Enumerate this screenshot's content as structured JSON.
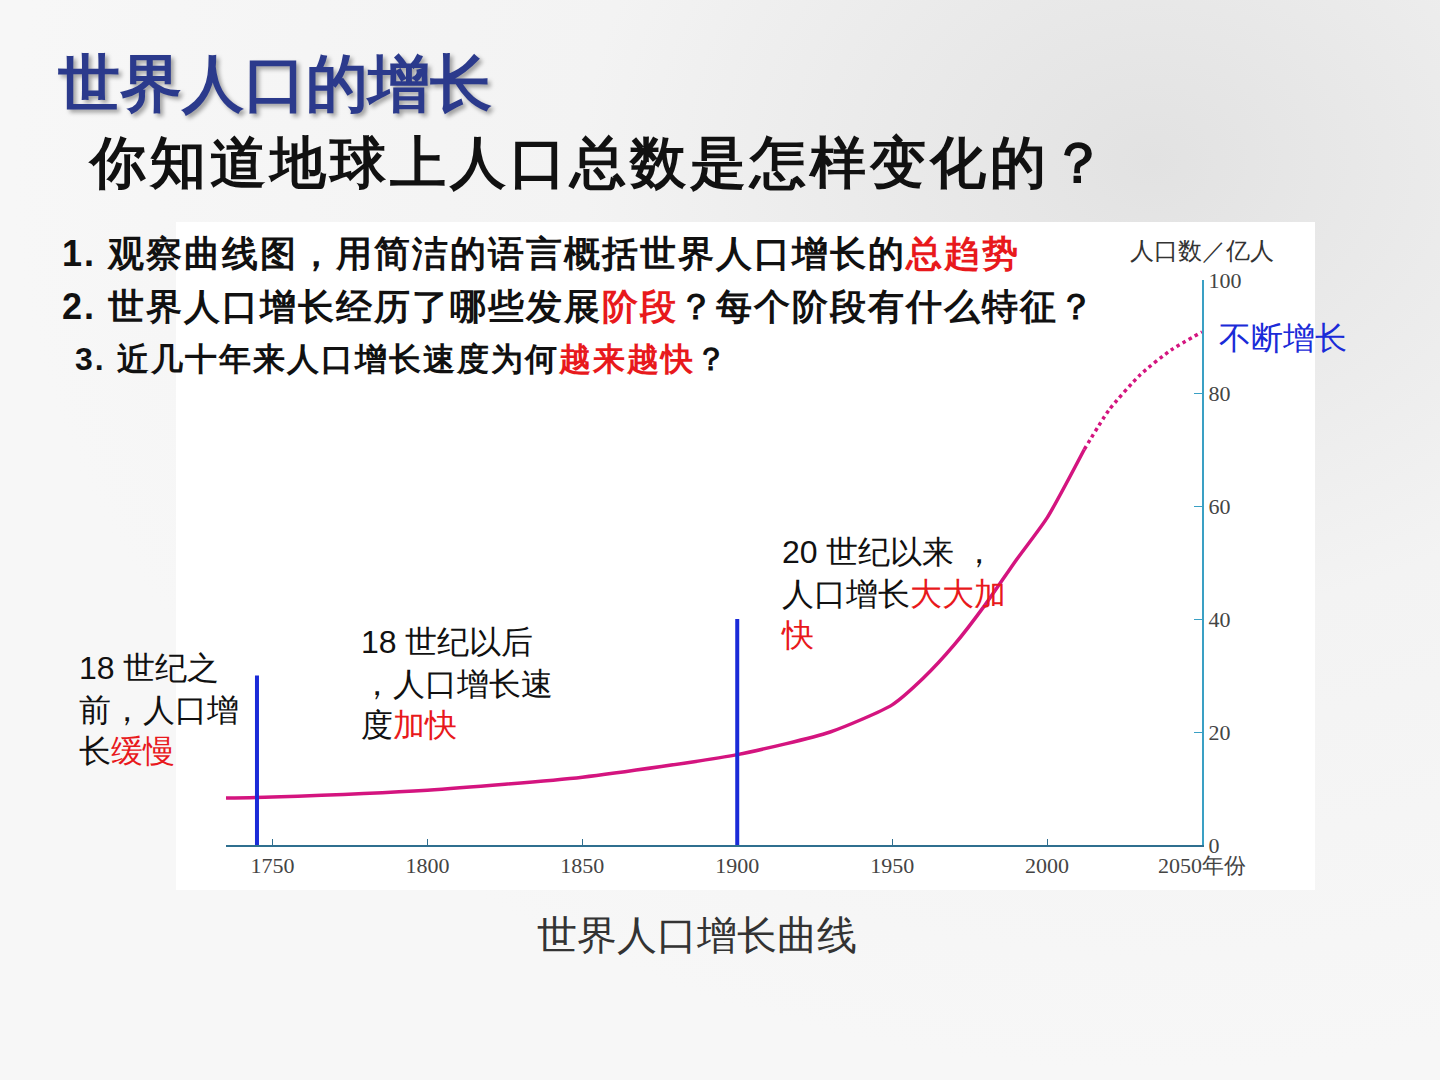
{
  "slide": {
    "title": "世界人口的增长",
    "subtitle": "你知道地球上人口总数是怎样变化的？",
    "questions": [
      {
        "text": "1. 观察曲线图，用简洁的语言概括世界人口增长的总趋势",
        "highlight": "总趋势"
      },
      {
        "text": "2. 世界人口增长经历了哪些发展阶段？每个阶段有什么特征？",
        "highlight": "阶段"
      },
      {
        "text": "3. 近几十年来人口增长速度为何越来越快？",
        "highlight": "越来越快"
      }
    ]
  },
  "chart_data": {
    "type": "line",
    "title": "世界人口增长曲线",
    "ylabel": "人口数／亿人",
    "x": [
      1735,
      1750,
      1800,
      1850,
      1900,
      1930,
      1950,
      1960,
      1970,
      1980,
      1990,
      2000,
      2012,
      2020,
      2030,
      2040,
      2050
    ],
    "series": [
      {
        "color": "#d4147f",
        "line_style": "solid",
        "values": [
          8.3,
          8.5,
          9.7,
          12,
          16,
          20,
          24.8,
          29.5,
          35.4,
          42.5,
          50.4,
          57.9,
          70,
          null,
          null,
          null,
          null
        ]
      },
      {
        "color": "#d4147f",
        "line_style": "dotted",
        "values": [
          null,
          null,
          null,
          null,
          null,
          null,
          null,
          null,
          null,
          null,
          null,
          null,
          70,
          77,
          83.2,
          87.6,
          90.8
        ]
      }
    ],
    "xlim": [
      1735,
      2050
    ],
    "xticks": [
      1750,
      1800,
      1850,
      1900,
      1950,
      2000,
      {
        "value": 2050,
        "label": "2050年份"
      }
    ],
    "ylim": [
      0,
      100
    ],
    "yticks": [
      0,
      20,
      40,
      60,
      80,
      100
    ],
    "grid": false,
    "dividers": [
      {
        "x": 1745,
        "y": [
          0,
          30
        ]
      },
      {
        "x": 1900,
        "y": [
          0,
          40
        ]
      }
    ],
    "annotations": [
      {
        "text": "18 世纪之前，人口增长缓慢",
        "highlight": "缓慢",
        "x": 1687,
        "y": 34.9
      },
      {
        "text": "18 世纪以后，人口增长速度加快",
        "highlight": "加快",
        "x": 1778,
        "y": 39.5
      },
      {
        "text": "20 世纪以来 ，人口增长大大加快",
        "highlight": "大大加快",
        "x": 1913.5,
        "y": 55.4
      },
      {
        "text": "不断增长",
        "x": 2054.8,
        "y": 93.3,
        "color": "#1a2bd8"
      }
    ]
  }
}
